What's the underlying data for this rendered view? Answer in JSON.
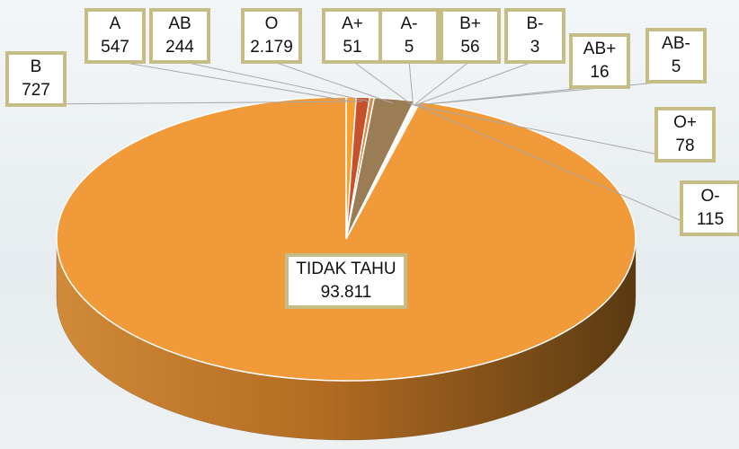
{
  "chart_data": {
    "type": "pie",
    "categories": [
      "A",
      "B",
      "AB",
      "O",
      "A+",
      "A-",
      "B+",
      "B-",
      "AB+",
      "AB-",
      "O+",
      "O-",
      "TIDAK TAHU"
    ],
    "values": [
      547,
      727,
      244,
      2179,
      51,
      5,
      56,
      3,
      16,
      5,
      78,
      115,
      93811
    ],
    "value_labels": [
      "547",
      "727",
      "244",
      "2.179",
      "51",
      "5",
      "56",
      "3",
      "16",
      "5",
      "78",
      "115",
      "93.811"
    ],
    "colors": [
      "#f5a030",
      "#c8502a",
      "#d98a45",
      "#9a7c55",
      "#e8e8e8",
      "#d0d0d0",
      "#f2f2f2",
      "#c0c0c0",
      "#e0e0e0",
      "#bfbfbf",
      "#f7f7f7",
      "#dcdcdc",
      "#f09a3a"
    ]
  }
}
